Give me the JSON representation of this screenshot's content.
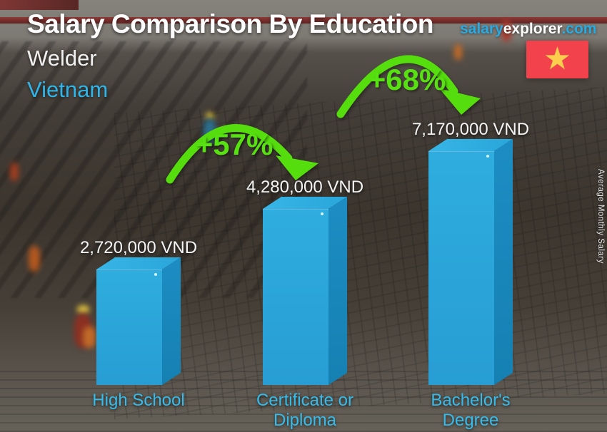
{
  "header": {
    "title": "Salary Comparison By Education",
    "brand": {
      "part1": "salary",
      "part2": "explorer",
      "part3": ".com"
    },
    "job": "Welder",
    "country": "Vietnam",
    "flag": {
      "name": "vietnam-flag",
      "red": "#f2424c",
      "star_color": "#fdce4e",
      "star": "★"
    }
  },
  "ylabel": "Average Monthly Salary",
  "chart_data": {
    "type": "bar",
    "title": "Salary Comparison By Education — Welder, Vietnam",
    "categories": [
      "High School",
      "Certificate or Diploma",
      "Bachelor's Degree"
    ],
    "display_categories": [
      "High School",
      "Certificate or\nDiploma",
      "Bachelor's\nDegree"
    ],
    "values": [
      2720000,
      4280000,
      7170000
    ],
    "value_labels": [
      "2,720,000 VND",
      "4,280,000 VND",
      "7,170,000 VND"
    ],
    "currency": "VND",
    "increases": [
      "+57%",
      "+68%"
    ],
    "ylabel": "Average Monthly Salary",
    "legend": "none",
    "colors": {
      "bar_front": "#29a3d9",
      "bar_top": "#31b1e2",
      "bar_side": "#1a85bb",
      "arrow_green": "#55dd0e",
      "accent_cyan": "#2fb5e9",
      "value_text": "#f5f5f5"
    }
  }
}
